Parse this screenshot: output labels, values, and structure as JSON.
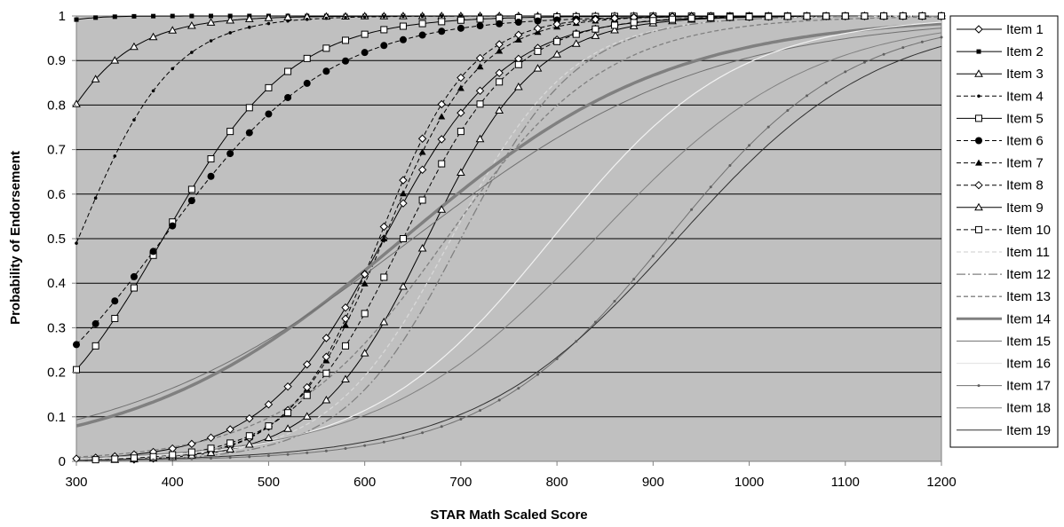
{
  "chart_data": {
    "type": "line",
    "title": "",
    "xlabel": "STAR Math Scaled Score",
    "ylabel": "Probability of Endorsement",
    "xlim": [
      300,
      1200
    ],
    "ylim": [
      0,
      1
    ],
    "x_ticks": [
      300,
      400,
      500,
      600,
      700,
      800,
      900,
      1000,
      1100,
      1200
    ],
    "y_ticks": [
      0,
      0.1,
      0.2,
      0.3,
      0.4,
      0.5,
      0.6,
      0.7,
      0.8,
      0.9,
      1
    ],
    "grid": "horizontal",
    "legend_position": "right",
    "plot_background": "#c0c0c0",
    "series": [
      {
        "name": "Item 1",
        "b": 620,
        "a": 0.016,
        "style": "solid",
        "marker": "diamond-open",
        "color": "#000000",
        "width": 1
      },
      {
        "name": "Item 2",
        "b": 180,
        "a": 0.04,
        "style": "solid",
        "marker": "square-filled",
        "color": "#000000",
        "width": 1
      },
      {
        "name": "Item 3",
        "b": 230,
        "a": 0.02,
        "style": "solid",
        "marker": "triangle-open",
        "color": "#000000",
        "width": 1
      },
      {
        "name": "Item 4",
        "b": 302,
        "a": 0.0205,
        "style": "dashed",
        "marker": "dot-small",
        "color": "#000000",
        "width": 1
      },
      {
        "name": "Item 5",
        "b": 390,
        "a": 0.015,
        "style": "solid",
        "marker": "square-open",
        "color": "#000000",
        "width": 1
      },
      {
        "name": "Item 6",
        "b": 390,
        "a": 0.0115,
        "style": "dashed",
        "marker": "circle-filled",
        "color": "#000000",
        "width": 1
      },
      {
        "name": "Item 7",
        "b": 620,
        "a": 0.0205,
        "style": "dashed",
        "marker": "triangle-filled",
        "color": "#000000",
        "width": 1
      },
      {
        "name": "Item 8",
        "b": 615,
        "a": 0.0215,
        "style": "dashed",
        "marker": "diamond-open",
        "color": "#000000",
        "width": 1
      },
      {
        "name": "Item 9",
        "b": 665,
        "a": 0.0175,
        "style": "solid",
        "marker": "triangle-open",
        "color": "#000000",
        "width": 1
      },
      {
        "name": "Item 10",
        "b": 640,
        "a": 0.0175,
        "style": "dashed",
        "marker": "square-open",
        "color": "#000000",
        "width": 1
      },
      {
        "name": "Item 11",
        "b": 690,
        "a": 0.016,
        "style": "dashed",
        "marker": "none",
        "color": "#d8d8d8",
        "width": 1.3
      },
      {
        "name": "Item 12",
        "b": 700,
        "a": 0.0165,
        "style": "dashdot",
        "marker": "none",
        "color": "#808080",
        "width": 1.3
      },
      {
        "name": "Item 13",
        "b": 685,
        "a": 0.012,
        "style": "dashed",
        "marker": "none",
        "color": "#808080",
        "width": 1.3
      },
      {
        "name": "Item 14",
        "b": 640,
        "a": 0.0072,
        "style": "solid",
        "marker": "none",
        "color": "#808080",
        "width": 3.5
      },
      {
        "name": "Item 15",
        "b": 650,
        "a": 0.0065,
        "style": "solid",
        "marker": "none",
        "color": "#707070",
        "width": 1
      },
      {
        "name": "Item 16",
        "b": 795,
        "a": 0.0105,
        "style": "solid",
        "marker": "none",
        "color": "#f2f2f2",
        "width": 1.2
      },
      {
        "name": "Item 17",
        "b": 915,
        "a": 0.0105,
        "style": "solid",
        "marker": "dot-gray",
        "color": "#707070",
        "width": 1
      },
      {
        "name": "Item 18",
        "b": 840,
        "a": 0.009,
        "style": "solid",
        "marker": "none",
        "color": "#808080",
        "width": 1
      },
      {
        "name": "Item 19",
        "b": 925,
        "a": 0.0095,
        "style": "solid",
        "marker": "none",
        "color": "#303030",
        "width": 1
      }
    ]
  }
}
